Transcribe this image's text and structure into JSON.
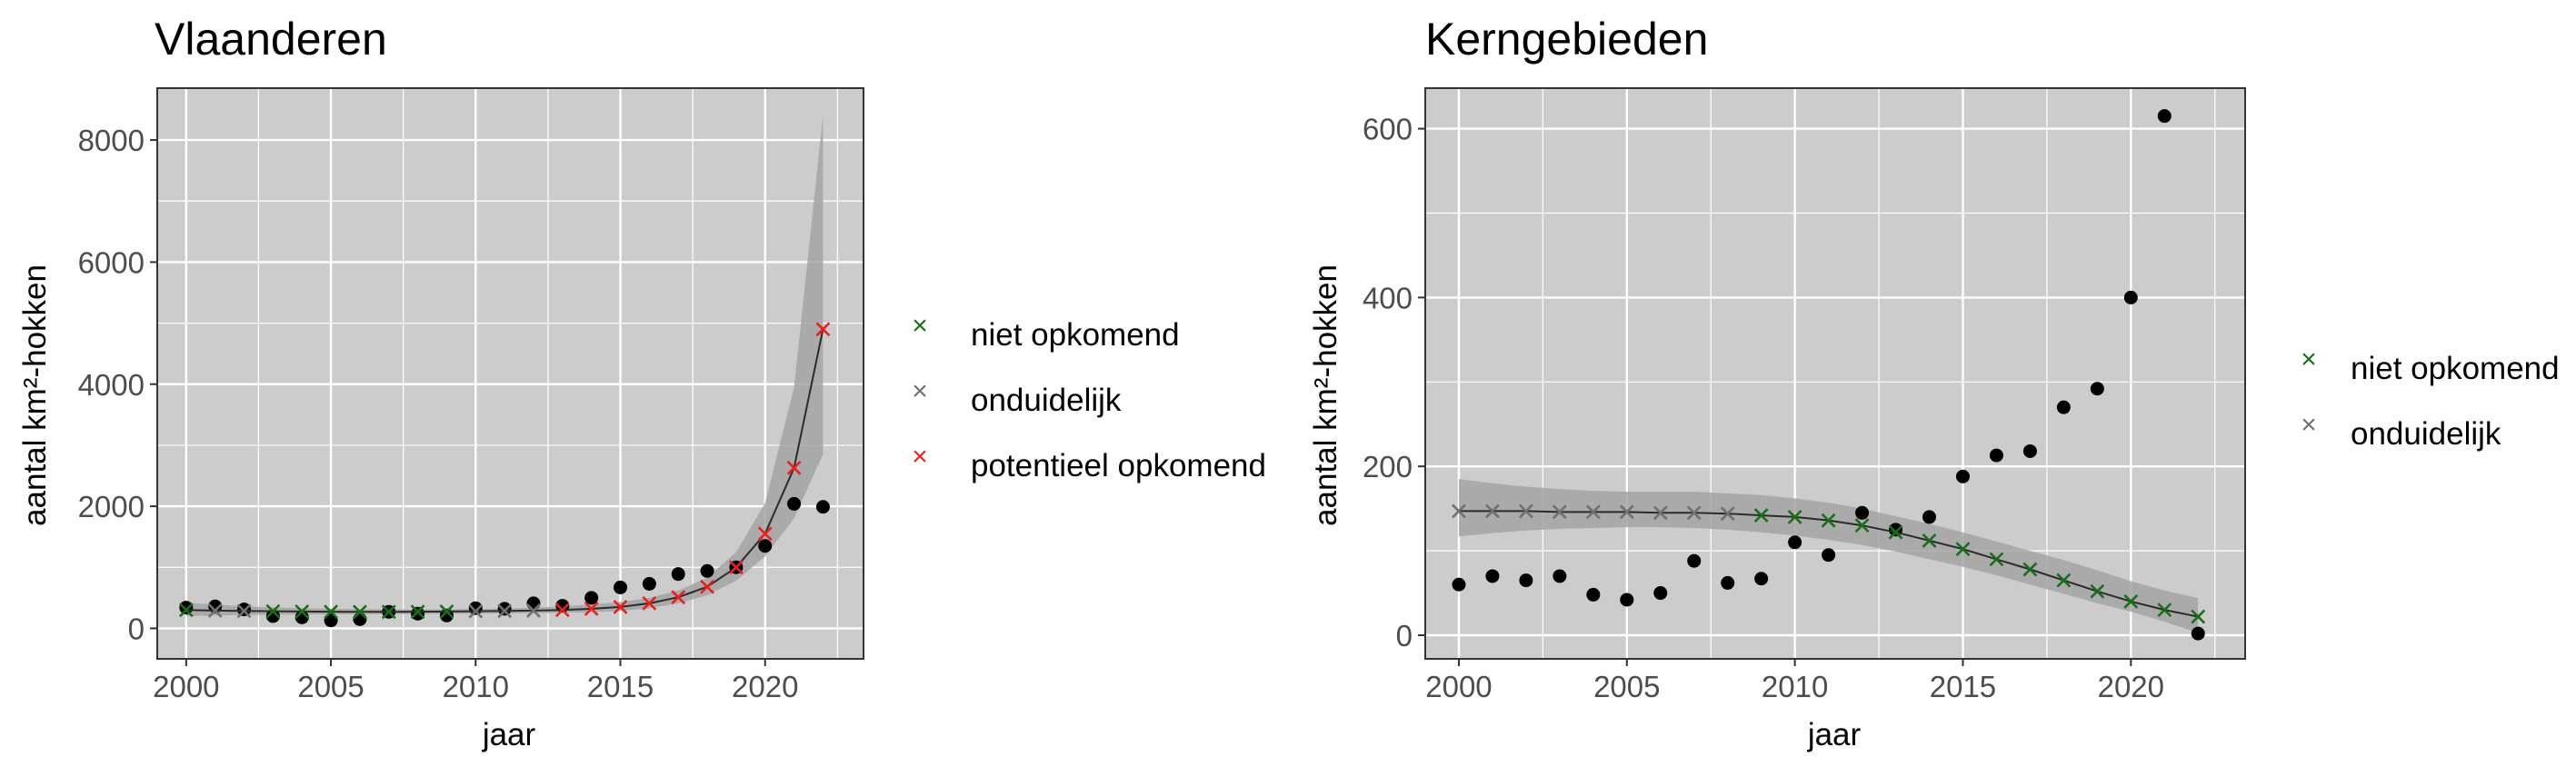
{
  "chart_data": [
    {
      "type": "scatter",
      "title": "Vlaanderen",
      "xlabel": "jaar",
      "ylabel": "aantal km²-hokken",
      "xlim": [
        1999,
        2023.4
      ],
      "ylim": [
        -500,
        8850
      ],
      "x_ticks": [
        2000,
        2005,
        2010,
        2015,
        2020
      ],
      "y_ticks": [
        0,
        2000,
        4000,
        6000,
        8000
      ],
      "grid": true,
      "legend": "right",
      "observed": {
        "x": [
          2000,
          2001,
          2002,
          2003,
          2004,
          2005,
          2006,
          2007,
          2008,
          2009,
          2010,
          2011,
          2012,
          2013,
          2014,
          2015,
          2016,
          2017,
          2018,
          2019,
          2020,
          2021,
          2022
        ],
        "y": [
          340,
          360,
          310,
          200,
          180,
          130,
          150,
          270,
          240,
          210,
          330,
          320,
          410,
          370,
          500,
          670,
          730,
          890,
          940,
          1000,
          1350,
          2040,
          1990
        ]
      },
      "fit": {
        "x": [
          2000,
          2001,
          2002,
          2003,
          2004,
          2005,
          2006,
          2007,
          2008,
          2009,
          2010,
          2011,
          2012,
          2013,
          2014,
          2015,
          2016,
          2017,
          2018,
          2019,
          2020,
          2021,
          2022
        ],
        "y": [
          300,
          290,
          285,
          280,
          275,
          272,
          270,
          270,
          272,
          275,
          280,
          285,
          290,
          300,
          320,
          350,
          410,
          510,
          680,
          1000,
          1550,
          2630,
          4900
        ],
        "lower": [
          200,
          210,
          220,
          225,
          228,
          230,
          232,
          234,
          236,
          238,
          240,
          245,
          250,
          255,
          265,
          285,
          330,
          410,
          540,
          780,
          1180,
          1800,
          2850
        ],
        "upper": [
          420,
          390,
          360,
          345,
          330,
          320,
          315,
          312,
          310,
          312,
          318,
          325,
          340,
          360,
          390,
          430,
          500,
          620,
          830,
          1250,
          2050,
          3950,
          8400
        ]
      },
      "classified": [
        {
          "x": 2000,
          "y": 300,
          "class": "niet opkomend"
        },
        {
          "x": 2001,
          "y": 290,
          "class": "onduidelijk"
        },
        {
          "x": 2002,
          "y": 285,
          "class": "onduidelijk"
        },
        {
          "x": 2003,
          "y": 280,
          "class": "niet opkomend"
        },
        {
          "x": 2004,
          "y": 275,
          "class": "niet opkomend"
        },
        {
          "x": 2005,
          "y": 272,
          "class": "niet opkomend"
        },
        {
          "x": 2006,
          "y": 270,
          "class": "niet opkomend"
        },
        {
          "x": 2007,
          "y": 270,
          "class": "niet opkomend"
        },
        {
          "x": 2008,
          "y": 272,
          "class": "niet opkomend"
        },
        {
          "x": 2009,
          "y": 275,
          "class": "niet opkomend"
        },
        {
          "x": 2010,
          "y": 280,
          "class": "onduidelijk"
        },
        {
          "x": 2011,
          "y": 285,
          "class": "onduidelijk"
        },
        {
          "x": 2012,
          "y": 290,
          "class": "onduidelijk"
        },
        {
          "x": 2013,
          "y": 300,
          "class": "potentieel opkomend"
        },
        {
          "x": 2014,
          "y": 320,
          "class": "potentieel opkomend"
        },
        {
          "x": 2015,
          "y": 350,
          "class": "potentieel opkomend"
        },
        {
          "x": 2016,
          "y": 410,
          "class": "potentieel opkomend"
        },
        {
          "x": 2017,
          "y": 510,
          "class": "potentieel opkomend"
        },
        {
          "x": 2018,
          "y": 680,
          "class": "potentieel opkomend"
        },
        {
          "x": 2019,
          "y": 1000,
          "class": "potentieel opkomend"
        },
        {
          "x": 2020,
          "y": 1550,
          "class": "potentieel opkomend"
        },
        {
          "x": 2021,
          "y": 2630,
          "class": "potentieel opkomend"
        },
        {
          "x": 2022,
          "y": 4900,
          "class": "potentieel opkomend"
        }
      ],
      "legend_entries": [
        "niet opkomend",
        "onduidelijk",
        "potentieel opkomend"
      ]
    },
    {
      "type": "scatter",
      "title": "Kerngebieden",
      "xlabel": "jaar",
      "ylabel": "aantal km²-hokken",
      "xlim": [
        1999,
        2023.4
      ],
      "ylim": [
        -28,
        648
      ],
      "x_ticks": [
        2000,
        2005,
        2010,
        2015,
        2020
      ],
      "y_ticks": [
        0,
        200,
        400,
        600
      ],
      "grid": true,
      "legend": "right",
      "observed": {
        "x": [
          2000,
          2001,
          2002,
          2003,
          2004,
          2005,
          2006,
          2007,
          2008,
          2009,
          2010,
          2011,
          2012,
          2013,
          2014,
          2015,
          2016,
          2017,
          2018,
          2019,
          2020,
          2021,
          2022
        ],
        "y": [
          60,
          70,
          65,
          70,
          48,
          42,
          50,
          88,
          62,
          67,
          110,
          95,
          145,
          125,
          140,
          188,
          213,
          218,
          270,
          292,
          400,
          615,
          2
        ]
      },
      "fit": {
        "x": [
          2000,
          2001,
          2002,
          2003,
          2004,
          2005,
          2006,
          2007,
          2008,
          2009,
          2010,
          2011,
          2012,
          2013,
          2014,
          2015,
          2016,
          2017,
          2018,
          2019,
          2020,
          2021,
          2022
        ],
        "y": [
          147,
          147,
          147,
          146,
          146,
          146,
          145,
          145,
          144,
          142,
          140,
          136,
          130,
          122,
          112,
          102,
          90,
          78,
          65,
          52,
          40,
          30,
          22
        ],
        "lower": [
          117,
          121,
          124,
          126,
          127,
          128,
          128,
          127,
          125,
          122,
          118,
          113,
          107,
          99,
          90,
          81,
          71,
          60,
          49,
          38,
          28,
          16,
          3
        ],
        "upper": [
          185,
          180,
          176,
          173,
          171,
          170,
          170,
          170,
          168,
          166,
          162,
          157,
          150,
          141,
          132,
          122,
          111,
          100,
          89,
          77,
          64,
          53,
          44
        ]
      },
      "classified": [
        {
          "x": 2000,
          "y": 147,
          "class": "onduidelijk"
        },
        {
          "x": 2001,
          "y": 147,
          "class": "onduidelijk"
        },
        {
          "x": 2002,
          "y": 147,
          "class": "onduidelijk"
        },
        {
          "x": 2003,
          "y": 146,
          "class": "onduidelijk"
        },
        {
          "x": 2004,
          "y": 146,
          "class": "onduidelijk"
        },
        {
          "x": 2005,
          "y": 146,
          "class": "onduidelijk"
        },
        {
          "x": 2006,
          "y": 145,
          "class": "onduidelijk"
        },
        {
          "x": 2007,
          "y": 145,
          "class": "onduidelijk"
        },
        {
          "x": 2008,
          "y": 144,
          "class": "onduidelijk"
        },
        {
          "x": 2009,
          "y": 142,
          "class": "niet opkomend"
        },
        {
          "x": 2010,
          "y": 140,
          "class": "niet opkomend"
        },
        {
          "x": 2011,
          "y": 136,
          "class": "niet opkomend"
        },
        {
          "x": 2012,
          "y": 130,
          "class": "niet opkomend"
        },
        {
          "x": 2013,
          "y": 122,
          "class": "niet opkomend"
        },
        {
          "x": 2014,
          "y": 112,
          "class": "niet opkomend"
        },
        {
          "x": 2015,
          "y": 102,
          "class": "niet opkomend"
        },
        {
          "x": 2016,
          "y": 90,
          "class": "niet opkomend"
        },
        {
          "x": 2017,
          "y": 78,
          "class": "niet opkomend"
        },
        {
          "x": 2018,
          "y": 65,
          "class": "niet opkomend"
        },
        {
          "x": 2019,
          "y": 52,
          "class": "niet opkomend"
        },
        {
          "x": 2020,
          "y": 40,
          "class": "niet opkomend"
        },
        {
          "x": 2021,
          "y": 30,
          "class": "niet opkomend"
        },
        {
          "x": 2022,
          "y": 22,
          "class": "niet opkomend"
        }
      ],
      "legend_entries": [
        "niet opkomend",
        "onduidelijk"
      ]
    }
  ],
  "colors": {
    "panel_background": "#cccccc",
    "grid": "#ffffff",
    "ribbon": "#a3a3a3",
    "fit_line": "#2b2b2b",
    "observed": "#000000",
    "niet opkomend": "#1a6e1a",
    "onduidelijk": "#707070",
    "potentieel opkomend": "#e8211d"
  }
}
